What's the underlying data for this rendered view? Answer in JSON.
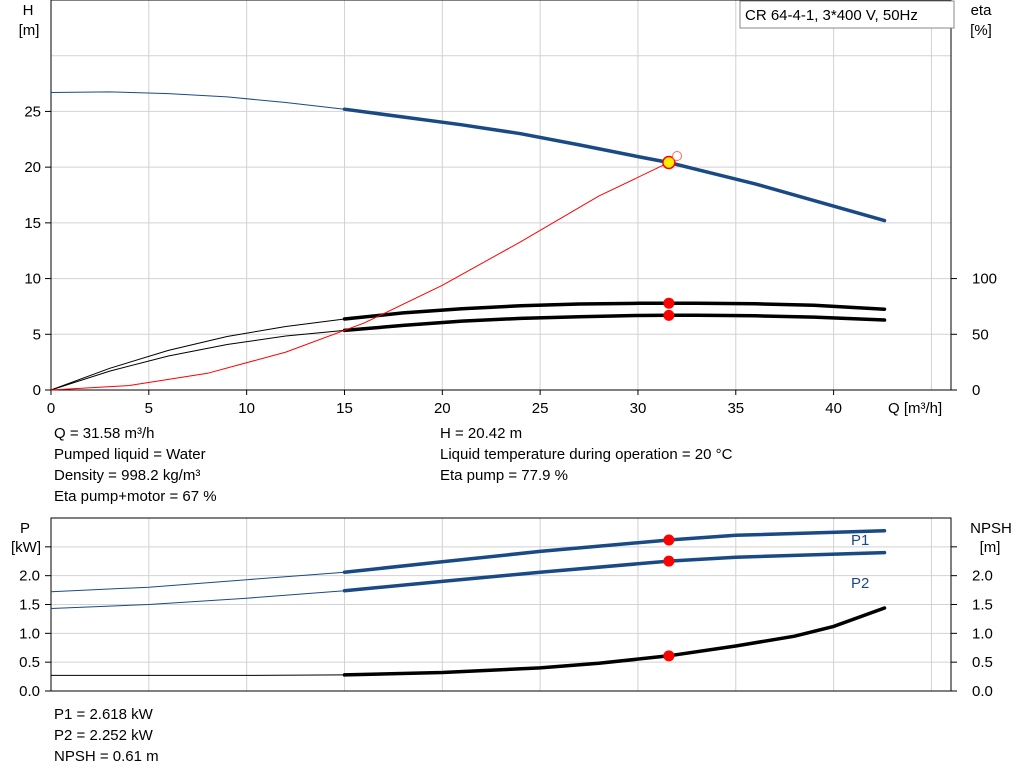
{
  "chart_data": [
    {
      "type": "line",
      "title": "CR 64-4-1, 3*400 V, 50Hz",
      "xlabel": "Q [m³/h]",
      "ylabel_left": [
        "H",
        "[m]"
      ],
      "ylabel_right": [
        "eta",
        "[%]"
      ],
      "xlim": [
        0,
        46
      ],
      "ylim_left": [
        0,
        35
      ],
      "ylim_right": [
        0,
        350
      ],
      "x_ticks": [
        0,
        5,
        10,
        15,
        20,
        25,
        30,
        35,
        40
      ],
      "y_ticks_left": [
        0,
        5,
        10,
        15,
        20,
        25
      ],
      "y_ticks_right": [
        0,
        50,
        100
      ],
      "grid": true,
      "operating_point": {
        "q": 31.58,
        "h": 20.42,
        "eta_pump": 77.9,
        "eta_total": 67
      },
      "series": [
        {
          "key": "H",
          "axis": "left",
          "color": "#1a4a85",
          "x": [
            0,
            3,
            6,
            9,
            12,
            15,
            18,
            21,
            24,
            27,
            30,
            31.58,
            33,
            36,
            39,
            42.6
          ],
          "y": [
            26.7,
            26.75,
            26.6,
            26.3,
            25.8,
            25.2,
            24.5,
            23.8,
            23.0,
            22.0,
            20.95,
            20.42,
            19.8,
            18.5,
            17.0,
            15.2
          ],
          "thin_below": 15
        },
        {
          "key": "eta_pump",
          "axis": "right",
          "color": "#000000",
          "x": [
            0,
            3,
            6,
            9,
            12,
            15,
            18,
            21,
            24,
            27,
            30,
            31.58,
            33,
            36,
            39,
            42.6
          ],
          "y": [
            0,
            19.5,
            35.5,
            48,
            57,
            63.7,
            69.2,
            73,
            75.6,
            77.2,
            77.85,
            77.9,
            77.8,
            77.4,
            76,
            72.5
          ],
          "thin_below": 15
        },
        {
          "key": "eta_total",
          "axis": "right",
          "color": "#000000",
          "x": [
            0,
            3,
            6,
            9,
            12,
            15,
            18,
            21,
            24,
            27,
            30,
            31.58,
            33,
            36,
            39,
            42.6
          ],
          "y": [
            0,
            17,
            30.5,
            40.8,
            48.5,
            53.5,
            58,
            61.8,
            64.3,
            65.8,
            66.9,
            67,
            67,
            66.6,
            65.4,
            62.8
          ],
          "thin_below": 15
        },
        {
          "key": "npsh_required_curve",
          "axis": "left",
          "color": "#ff0000",
          "x": [
            0,
            4,
            8,
            12,
            16,
            20,
            24,
            28,
            31.58,
            32
          ],
          "y": [
            0,
            0.4,
            1.5,
            3.4,
            6.0,
            9.4,
            13.3,
            17.4,
            20.42,
            21.0
          ],
          "thin_below": 999
        }
      ],
      "markers": [
        {
          "axis": "left",
          "x": 31.58,
          "y": 20.42,
          "style": "yellow"
        },
        {
          "axis": "left",
          "x": 32.0,
          "y": 21.0,
          "style": "hollow"
        },
        {
          "axis": "right",
          "x": 31.58,
          "y": 77.9,
          "style": "red"
        },
        {
          "axis": "right",
          "x": 31.58,
          "y": 67,
          "style": "red"
        }
      ]
    },
    {
      "type": "line",
      "ylabel_left": [
        "P",
        "[kW]"
      ],
      "ylabel_right": [
        "NPSH",
        "[m]"
      ],
      "xlim": [
        0,
        46
      ],
      "ylim": [
        0,
        3
      ],
      "y_ticks": [
        "0.0",
        "0.5",
        "1.0",
        "1.5",
        "2.0"
      ],
      "grid": true,
      "series": [
        {
          "name": "P1",
          "color": "#1a4a85",
          "x": [
            0,
            5,
            10,
            15,
            20,
            25,
            31.58,
            35,
            42.6
          ],
          "y": [
            1.72,
            1.8,
            1.93,
            2.06,
            2.24,
            2.42,
            2.618,
            2.7,
            2.78
          ],
          "thin_below": 15
        },
        {
          "name": "P2",
          "color": "#1a4a85",
          "x": [
            0,
            5,
            10,
            15,
            20,
            25,
            31.58,
            35,
            42.6
          ],
          "y": [
            1.43,
            1.5,
            1.61,
            1.74,
            1.9,
            2.06,
            2.252,
            2.32,
            2.4
          ],
          "thin_below": 15
        },
        {
          "key": "NPSH",
          "color": "#000000",
          "x": [
            0,
            10,
            15,
            20,
            25,
            28,
            31.58,
            35,
            38,
            40,
            42.6
          ],
          "y": [
            0.27,
            0.27,
            0.28,
            0.32,
            0.4,
            0.48,
            0.61,
            0.78,
            0.95,
            1.12,
            1.44
          ],
          "thin_below": 15
        }
      ],
      "markers": [
        {
          "x": 31.58,
          "y": 2.618,
          "style": "red"
        },
        {
          "x": 31.58,
          "y": 2.252,
          "style": "red"
        },
        {
          "x": 31.58,
          "y": 0.61,
          "style": "red"
        }
      ]
    }
  ],
  "info_top_left": [
    "Q = 31.58 m³/h",
    "Pumped liquid = Water",
    "Density = 998.2 kg/m³",
    "Eta pump+motor = 67 %"
  ],
  "info_top_right": [
    "H = 20.42 m",
    "Liquid temperature during operation = 20 °C",
    "Eta pump = 77.9 %"
  ],
  "info_bottom": [
    "P1 = 2.618 kW",
    "P2 = 2.252 kW",
    "NPSH = 0.61 m"
  ]
}
